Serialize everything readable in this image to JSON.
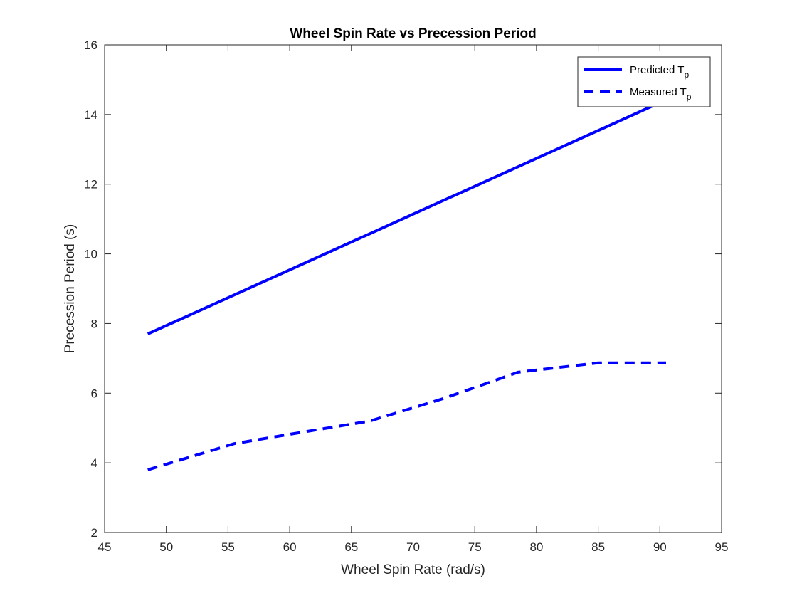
{
  "chart_data": {
    "type": "line",
    "title": "Wheel Spin Rate vs Precession Period",
    "xlabel": "Wheel Spin Rate (rad/s)",
    "ylabel": "Precession Period (s)",
    "xlim": [
      45,
      95
    ],
    "ylim": [
      2,
      16
    ],
    "xticks": [
      45,
      50,
      55,
      60,
      65,
      70,
      75,
      80,
      85,
      90,
      95
    ],
    "yticks": [
      2,
      4,
      6,
      8,
      10,
      12,
      14,
      16
    ],
    "grid": false,
    "legend_position": "top-right",
    "series": [
      {
        "name": "Predicted T",
        "name_subscript": "p",
        "style": "solid",
        "color": "#0000ff",
        "x": [
          48.5,
          91.0
        ],
        "y": [
          7.7,
          14.5
        ]
      },
      {
        "name": "Measured T",
        "name_subscript": "p",
        "style": "dashed",
        "color": "#0000ff",
        "x": [
          48.5,
          55.5,
          60.5,
          66.5,
          72.5,
          78.5,
          85.0,
          90.5
        ],
        "y": [
          3.8,
          4.55,
          4.85,
          5.2,
          5.85,
          6.6,
          6.87,
          6.87
        ]
      }
    ]
  }
}
